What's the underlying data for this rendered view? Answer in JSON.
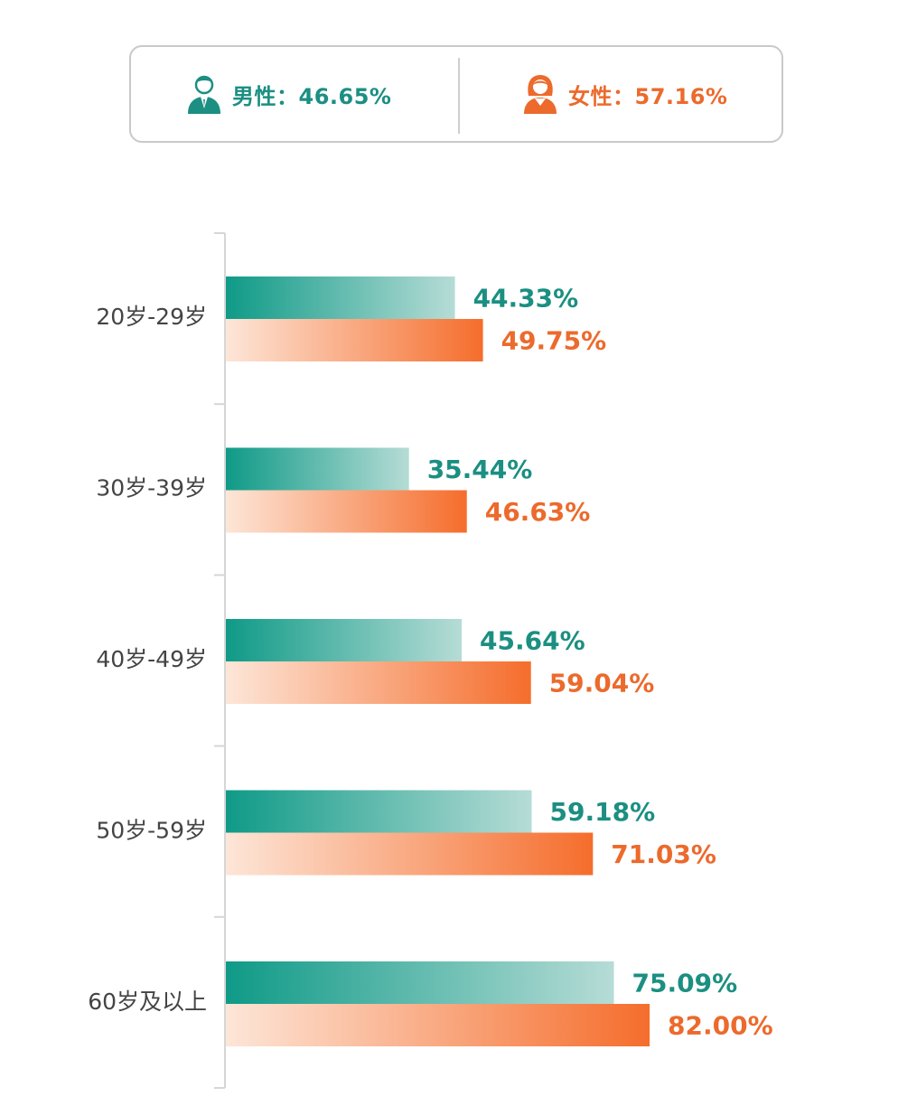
{
  "legend": {
    "male_label": "男性：46.65%",
    "female_label": "女性：57.16%",
    "male_icon": "male-person-icon",
    "female_icon": "female-person-icon"
  },
  "colors": {
    "male": "#0f9a87",
    "male_light": "#b6dcd6",
    "female": "#f56d2c",
    "female_light": "#fde6d8",
    "male_text": "#1b8f82",
    "female_text": "#ec6a2c",
    "axis": "#d6d6d6",
    "category_text": "#444444"
  },
  "chart_data": {
    "type": "bar",
    "orientation": "horizontal",
    "categories": [
      "20岁-29岁",
      "30岁-39岁",
      "40岁-49岁",
      "50岁-59岁",
      "60岁及以上"
    ],
    "series": [
      {
        "key": "male",
        "values": [
          44.33,
          35.44,
          45.64,
          59.18,
          75.09
        ],
        "labels": [
          "44.33%",
          "35.44%",
          "45.64%",
          "59.18%",
          "75.09%"
        ]
      },
      {
        "key": "female",
        "values": [
          49.75,
          46.63,
          59.04,
          71.03,
          82.0
        ],
        "labels": [
          "49.75%",
          "46.63%",
          "59.04%",
          "71.03%",
          "82.00%"
        ]
      }
    ],
    "xlim": [
      0,
      100
    ],
    "grid": false,
    "legend": "top-center"
  }
}
